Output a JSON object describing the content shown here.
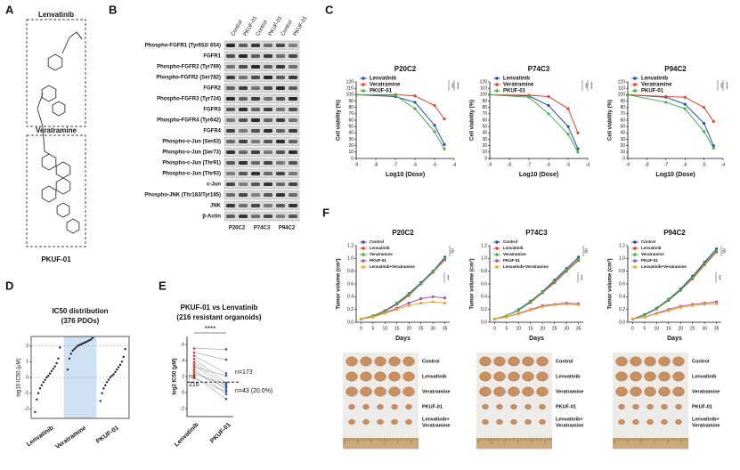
{
  "panel_labels": [
    "A",
    "B",
    "C",
    "D",
    "E",
    "F"
  ],
  "structure": {
    "top": "Lenvatinib",
    "middle": "Veratramine",
    "bottom": "PKUF-01"
  },
  "blot": {
    "columns": [
      "Control",
      "PKUF-01",
      "Control",
      "PKUF-01",
      "Control",
      "PKUF-01"
    ],
    "rows": [
      "Phospho-FGFR1 (Tyr653/ 654)",
      "FGFR1",
      "Phospho-FGFR2 (Tyr769)",
      "Phospho-FGFR2 (Ser782)",
      "FGFR2",
      "Phospho-FGFR3 (Tyr724)",
      "FGFR3",
      "Phospho-FGFR4 (Tyr642)",
      "FGFR4",
      "Phospho-c-Jun (Ser63)",
      "Phospho-c-Jun (Ser73)",
      "Phospho-c-Jun (Thr91)",
      "Phospho-c-Jun (Thr93)",
      "c-Jun",
      "Phospho-JNK (Thr183/Tyr185)",
      "JNK",
      "β-Actin"
    ],
    "groups": [
      "P20C2",
      "P74C3",
      "P94C2"
    ]
  },
  "photos": {
    "rows": [
      "Control",
      "Lenvatinib",
      "Veratramine",
      "PKUF-01",
      [
        "Lenvatinib+",
        "Veratramine"
      ]
    ]
  },
  "chart_data": [
    {
      "type": "line",
      "title": "P20C2",
      "xlabel": "Log10 (Dose)",
      "ylabel": "Cell viability (%)",
      "x": [
        -9,
        -7,
        -6,
        -5,
        -4.5
      ],
      "xlim": [
        -9,
        -4
      ],
      "xticks": [
        -9,
        -8,
        -7,
        -6,
        -5,
        -4
      ],
      "ylim": [
        0,
        120
      ],
      "yticks": [
        0,
        10,
        20,
        30,
        40,
        50,
        60,
        70,
        80,
        90,
        100,
        110,
        120
      ],
      "legend": "upper left",
      "annotations": [
        "***",
        "****"
      ],
      "series": [
        {
          "name": "Lenvatinib",
          "color": "#2a4ea8",
          "values": [
            100,
            97,
            88,
            52,
            22
          ]
        },
        {
          "name": "Veratramine",
          "color": "#e8412c",
          "values": [
            100,
            100,
            98,
            83,
            62
          ]
        },
        {
          "name": "PKUF-01",
          "color": "#46b04a",
          "values": [
            100,
            99,
            78,
            42,
            15
          ]
        }
      ]
    },
    {
      "type": "line",
      "title": "P74C3",
      "xlabel": "Log10 (Dose)",
      "ylabel": "Cell viability (%)",
      "x": [
        -9,
        -7,
        -6,
        -5,
        -4.5
      ],
      "xlim": [
        -9,
        -4
      ],
      "xticks": [
        -9,
        -8,
        -7,
        -6,
        -5,
        -4
      ],
      "ylim": [
        0,
        120
      ],
      "yticks": [
        0,
        10,
        20,
        30,
        40,
        50,
        60,
        70,
        80,
        90,
        100,
        110,
        120
      ],
      "legend": "upper left",
      "annotations": [
        "***",
        "****"
      ],
      "series": [
        {
          "name": "Lenvatinib",
          "color": "#2a4ea8",
          "values": [
            100,
            98,
            83,
            50,
            15
          ]
        },
        {
          "name": "Veratramine",
          "color": "#e8412c",
          "values": [
            100,
            99,
            97,
            78,
            40
          ]
        },
        {
          "name": "PKUF-01",
          "color": "#46b04a",
          "values": [
            100,
            96,
            70,
            38,
            10
          ]
        }
      ]
    },
    {
      "type": "line",
      "title": "P94C2",
      "xlabel": "Log10 (Dose)",
      "ylabel": "Cell viability (%)",
      "x": [
        -9,
        -7,
        -6,
        -5,
        -4.5
      ],
      "xlim": [
        -9,
        -4
      ],
      "xticks": [
        -9,
        -8,
        -7,
        -6,
        -5,
        -4
      ],
      "ylim": [
        0,
        120
      ],
      "yticks": [
        0,
        10,
        20,
        30,
        40,
        50,
        60,
        70,
        80,
        90,
        100,
        110,
        120
      ],
      "legend": "upper left",
      "annotations": [
        "***",
        "****"
      ],
      "series": [
        {
          "name": "Lenvatinib",
          "color": "#2a4ea8",
          "values": [
            100,
            96,
            85,
            55,
            20
          ]
        },
        {
          "name": "Veratramine",
          "color": "#e8412c",
          "values": [
            100,
            97,
            96,
            80,
            58
          ]
        },
        {
          "name": "PKUF-01",
          "color": "#46b04a",
          "values": [
            100,
            88,
            78,
            42,
            16
          ]
        }
      ]
    },
    {
      "type": "line",
      "title": "P20C2",
      "xlabel": "Days",
      "ylabel": "Tumor volume (cm³)",
      "x": [
        0,
        5,
        10,
        15,
        20,
        25,
        30,
        35
      ],
      "xlim": [
        -2,
        37
      ],
      "xticks": [
        0,
        5,
        10,
        15,
        20,
        25,
        30,
        35
      ],
      "ylim": [
        0,
        1.2
      ],
      "yticks": [
        {
          "value": 0,
          "label": "0.0"
        },
        0.2,
        0.4,
        0.6,
        0.8,
        {
          "value": 1,
          "label": "1.0"
        },
        1.2
      ],
      "legend": "upper left",
      "annotations": [
        "***",
        "ns"
      ],
      "series": [
        {
          "name": "Control",
          "color": "#2a4ea8",
          "values": [
            0.05,
            0.1,
            0.18,
            0.3,
            0.45,
            0.62,
            0.8,
            1.02
          ]
        },
        {
          "name": "Lenvatinib",
          "color": "#e8412c",
          "values": [
            0.05,
            0.09,
            0.17,
            0.28,
            0.42,
            0.6,
            0.78,
            0.98
          ]
        },
        {
          "name": "Veratramine",
          "color": "#46b04a",
          "values": [
            0.05,
            0.1,
            0.17,
            0.29,
            0.44,
            0.6,
            0.79,
            1.0
          ]
        },
        {
          "name": "PKUF-01",
          "color": "#9b59b6",
          "values": [
            0.05,
            0.08,
            0.15,
            0.22,
            0.3,
            0.37,
            0.4,
            0.38
          ]
        },
        {
          "name": "Lenvatinib+Veratramine",
          "color": "#f5a623",
          "values": [
            0.05,
            0.08,
            0.14,
            0.2,
            0.26,
            0.3,
            0.32,
            0.3
          ]
        }
      ]
    },
    {
      "type": "line",
      "title": "P74C3",
      "xlabel": "Days",
      "ylabel": "Tumor volume (cm³)",
      "x": [
        0,
        5,
        10,
        15,
        20,
        25,
        30,
        35
      ],
      "xlim": [
        -2,
        37
      ],
      "xticks": [
        0,
        5,
        10,
        15,
        20,
        25,
        30,
        35
      ],
      "ylim": [
        0,
        1.2
      ],
      "yticks": [
        {
          "value": 0,
          "label": "0.0"
        },
        0.2,
        0.4,
        0.6,
        0.8,
        {
          "value": 1,
          "label": "1.0"
        },
        1.2
      ],
      "legend": "upper left",
      "annotations": [
        "***",
        "ns"
      ],
      "series": [
        {
          "name": "Control",
          "color": "#2a4ea8",
          "values": [
            0.05,
            0.1,
            0.2,
            0.33,
            0.48,
            0.66,
            0.84,
            1.02
          ]
        },
        {
          "name": "Lenvatinib",
          "color": "#e8412c",
          "values": [
            0.05,
            0.1,
            0.19,
            0.31,
            0.46,
            0.62,
            0.8,
            0.97
          ]
        },
        {
          "name": "Veratramine",
          "color": "#46b04a",
          "values": [
            0.05,
            0.1,
            0.19,
            0.32,
            0.47,
            0.64,
            0.82,
            0.99
          ]
        },
        {
          "name": "PKUF-01",
          "color": "#9b59b6",
          "values": [
            0.05,
            0.08,
            0.14,
            0.2,
            0.26,
            0.28,
            0.3,
            0.29
          ]
        },
        {
          "name": "Lenvatinib+Veratramine",
          "color": "#f5a623",
          "values": [
            0.05,
            0.08,
            0.13,
            0.19,
            0.24,
            0.27,
            0.28,
            0.27
          ]
        }
      ]
    },
    {
      "type": "line",
      "title": "P94C2",
      "xlabel": "Days",
      "ylabel": "Tumor volume (cm³)",
      "x": [
        0,
        5,
        10,
        15,
        20,
        25,
        30,
        35
      ],
      "xlim": [
        -2,
        37
      ],
      "xticks": [
        0,
        5,
        10,
        15,
        20,
        25,
        30,
        35
      ],
      "ylim": [
        0,
        1.2
      ],
      "yticks": [
        {
          "value": 0,
          "label": "0.0"
        },
        0.2,
        0.4,
        0.6,
        0.8,
        {
          "value": 1,
          "label": "1.0"
        },
        1.2
      ],
      "legend": "upper left",
      "annotations": [
        "***",
        "ns"
      ],
      "series": [
        {
          "name": "Control",
          "color": "#2a4ea8",
          "values": [
            0.05,
            0.12,
            0.22,
            0.36,
            0.52,
            0.72,
            0.94,
            1.15
          ]
        },
        {
          "name": "Lenvatinib",
          "color": "#e8412c",
          "values": [
            0.05,
            0.11,
            0.21,
            0.34,
            0.5,
            0.68,
            0.9,
            1.1
          ]
        },
        {
          "name": "Veratramine",
          "color": "#46b04a",
          "values": [
            0.05,
            0.11,
            0.21,
            0.35,
            0.5,
            0.7,
            0.92,
            1.12
          ]
        },
        {
          "name": "PKUF-01",
          "color": "#9b59b6",
          "values": [
            0.05,
            0.08,
            0.14,
            0.2,
            0.25,
            0.28,
            0.3,
            0.32
          ]
        },
        {
          "name": "Lenvatinib+Veratramine",
          "color": "#f5a623",
          "values": [
            0.05,
            0.08,
            0.13,
            0.18,
            0.23,
            0.26,
            0.28,
            0.29
          ]
        }
      ]
    },
    {
      "type": "strip",
      "title": [
        "IC50 distribution",
        "(376 PDOs)"
      ],
      "ylabel": "log10 IC50 (μM)",
      "categories": [
        "Lenvatinib",
        "Veratramine",
        "PKUF-01"
      ],
      "ylim": [
        -2.6,
        2.6
      ],
      "yticks": [
        -2,
        -1,
        0,
        1,
        2
      ],
      "grid_values": [
        0,
        2
      ],
      "color": "#222222",
      "values": [
        [
          -2.2,
          -1.4,
          -1.0,
          -0.7,
          -0.5,
          -0.3,
          -0.15,
          0,
          0.1,
          0.25,
          0.4,
          0.55,
          0.7,
          0.9,
          1.2,
          1.9
        ],
        [
          0.5,
          1.2,
          1.5,
          1.7,
          1.8,
          1.9,
          2.0,
          2.05,
          2.1,
          2.15,
          2.2,
          2.25,
          2.3,
          2.35,
          2.4,
          2.5
        ],
        [
          -1.5,
          -1.0,
          -0.7,
          -0.5,
          -0.3,
          -0.15,
          0,
          0.1,
          0.2,
          0.35,
          0.5,
          0.65,
          0.8,
          1.0,
          1.3,
          1.8
        ]
      ]
    },
    {
      "type": "paired",
      "title": [
        "PKUF-01 vs Lenvatinib",
        "(216 resistant organoids)"
      ],
      "ylabel": "log2 IC50 (μM)",
      "categories": [
        "Lenvatinib",
        "PKUF-01"
      ],
      "ylim": [
        -3,
        7
      ],
      "yticks": [
        -2,
        0,
        2,
        4,
        6
      ],
      "threshold": 1.3,
      "colors": [
        "#d9342b",
        "#2a5caa"
      ],
      "values": [
        [
          5.5,
          5.0,
          4.6,
          4.2,
          3.8,
          3.5,
          3.2,
          2.9,
          2.6,
          2.3,
          2.0,
          1.8
        ],
        [
          5.4,
          4.1,
          2.4,
          1.2,
          0.8,
          0.3,
          2.1,
          -0.2,
          0.6,
          1.0,
          -0.8,
          0.1
        ]
      ],
      "annotations": {
        "significance": "****",
        "left_n": [
          "n=",
          "216"
        ],
        "right_n": "n=173",
        "below_n": "n=43 (20.0%)"
      }
    }
  ]
}
